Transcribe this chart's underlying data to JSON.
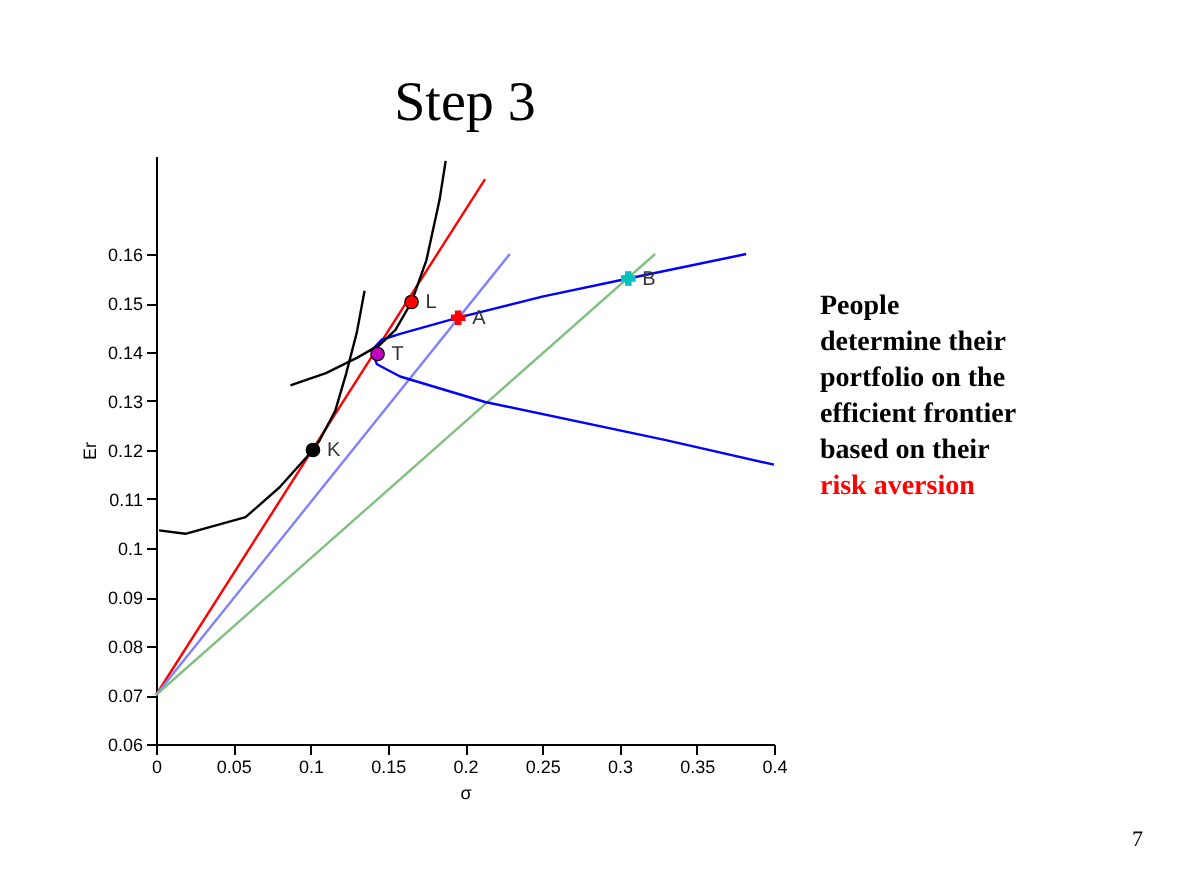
{
  "chart_data": {
    "type": "line",
    "title": "Step 3",
    "xlabel": "σ",
    "ylabel": "Er",
    "xlim": [
      0,
      0.4
    ],
    "ylim": [
      0.06,
      0.18
    ],
    "xticks": [
      0,
      0.05,
      0.1,
      0.15,
      0.2,
      0.25,
      0.3,
      0.35,
      0.4
    ],
    "yticks": [
      0.06,
      0.07,
      0.08,
      0.09,
      0.1,
      0.11,
      0.12,
      0.13,
      0.14,
      0.15,
      0.16
    ],
    "grid": false,
    "legend": false,
    "series": [
      {
        "color": "#ff0000",
        "x": [
          0,
          0.213
        ],
        "values": [
          0.07,
          0.1753
        ]
      },
      {
        "color": "#8080ff",
        "x": [
          0,
          0.229
        ],
        "values": [
          0.07,
          0.16
        ]
      },
      {
        "color": "#80c080",
        "x": [
          0,
          0.323
        ],
        "values": [
          0.07,
          0.16
        ]
      },
      {
        "color": "#0000ff",
        "x": [
          0.382,
          0.3057,
          0.25,
          0.1956,
          0.158,
          0.146,
          0.1395,
          0.143,
          0.158,
          0.213,
          0.33,
          0.4
        ],
        "values": [
          0.16,
          0.155,
          0.1513,
          0.147,
          0.1437,
          0.1425,
          0.1403,
          0.1375,
          0.135,
          0.1298,
          0.122,
          0.117
        ]
      },
      {
        "color": "#000000",
        "x": [
          0.002,
          0.019,
          0.058,
          0.08,
          0.1016,
          0.1058,
          0.116,
          0.123,
          0.13,
          0.135
        ],
        "values": [
          0.1036,
          0.1029,
          0.1063,
          0.1124,
          0.12,
          0.1219,
          0.128,
          0.1355,
          0.144,
          0.1525
        ]
      },
      {
        "color": "#000000",
        "x": [
          0.087,
          0.11,
          0.13,
          0.145,
          0.155,
          0.1654,
          0.175,
          0.1835,
          0.1875
        ],
        "values": [
          0.1332,
          0.1357,
          0.1388,
          0.1415,
          0.1445,
          0.1502,
          0.1587,
          0.171,
          0.179
        ]
      },
      {
        "type": "scatter",
        "name": "K",
        "marker": "circle",
        "color": "#000000",
        "x": [
          0.1016
        ],
        "values": [
          0.12
        ]
      },
      {
        "type": "scatter",
        "name": "L",
        "marker": "circle",
        "color": "#ff0000",
        "x": [
          0.1654
        ],
        "values": [
          0.1502
        ]
      },
      {
        "type": "scatter",
        "name": "T",
        "marker": "circle",
        "color": "#c000c0",
        "x": [
          0.1434
        ],
        "values": [
          0.1396
        ]
      },
      {
        "type": "scatter",
        "name": "A",
        "marker": "cross",
        "color": "#ff0000",
        "x": [
          0.1956
        ],
        "values": [
          0.147
        ]
      },
      {
        "type": "scatter",
        "name": "B",
        "marker": "cross",
        "color": "#00c0c0",
        "x": [
          0.3057
        ],
        "values": [
          0.155
        ]
      }
    ],
    "annotations": [
      "People\ndetermine their\nportfolio on the\nefficient frontier\nbased on their",
      "risk aversion",
      "7"
    ]
  }
}
